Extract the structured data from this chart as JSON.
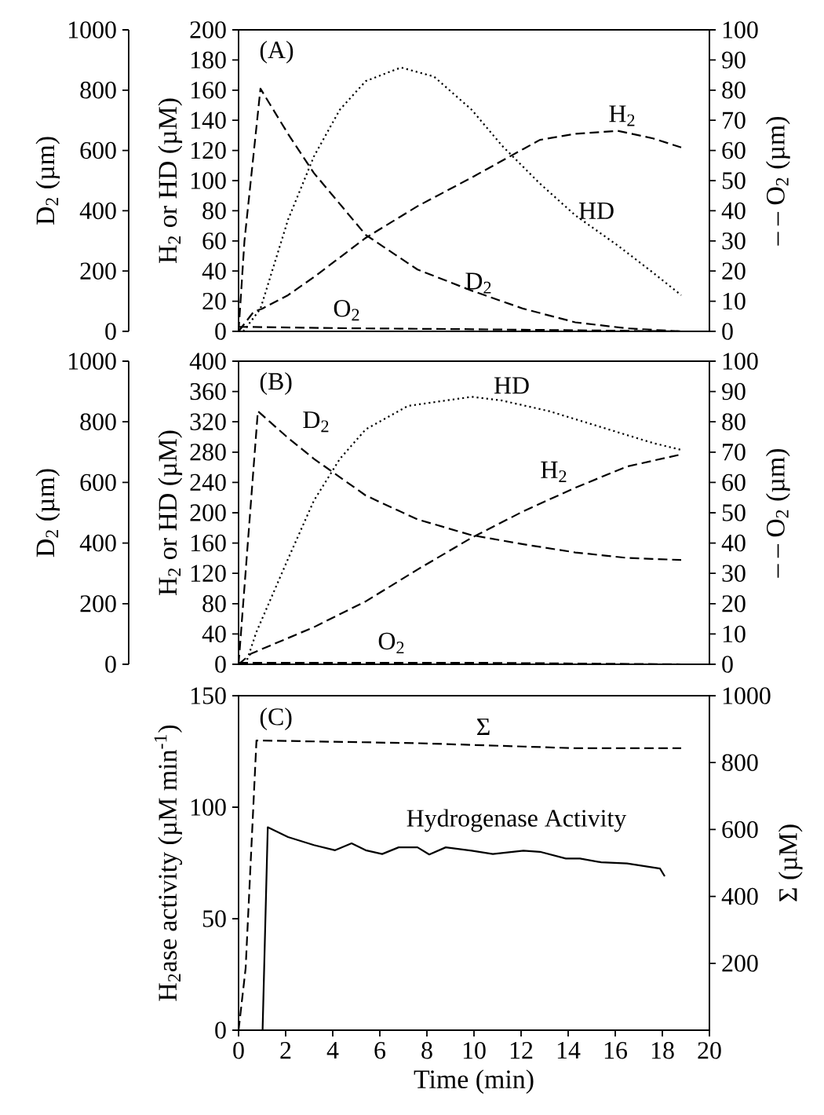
{
  "chart_data": [
    {
      "type": "line",
      "ylabel": "H$_{2}$ or HD (µM)",
      "y2label": "– – O$_{2}$ (µm)",
      "y3label": "D$_{2}$ (µm)",
      "xlim": [
        0,
        20
      ],
      "ylim": [
        0,
        200
      ],
      "yticks": [
        0,
        20,
        40,
        60,
        80,
        100,
        120,
        140,
        160,
        180,
        200
      ],
      "y2lim": [
        0,
        100
      ],
      "y2ticks": [
        0,
        10,
        20,
        30,
        40,
        50,
        60,
        70,
        80,
        90,
        100
      ],
      "y3lim": [
        0,
        1000
      ],
      "y3ticks": [
        0,
        200,
        400,
        600,
        800,
        1000
      ],
      "tick_labels": "y",
      "series": [
        {
          "name": "D$_{2}$",
          "color": "#000000",
          "line_style": "dashed",
          "axis": "y3",
          "x": [
            0,
            0.25,
            0.93,
            2.1,
            3.2,
            5.4,
            7.6,
            9.9,
            12.1,
            14.3,
            16.5,
            18.8
          ],
          "values": [
            0,
            300,
            805,
            655,
            525,
            320,
            205,
            135,
            75,
            30,
            10,
            0
          ]
        },
        {
          "name": "HD",
          "color": "#000000",
          "line_style": "dotted",
          "x": [
            0.2,
            0.93,
            2.1,
            3.2,
            4.3,
            5.4,
            6.9,
            8.3,
            9.9,
            11.2,
            12.8,
            14.3,
            16.1,
            17.6,
            18.8
          ],
          "values": [
            0,
            15,
            74,
            116,
            147,
            166,
            175,
            169,
            147,
            123,
            98,
            77,
            57,
            39,
            24
          ]
        },
        {
          "name": "H$_{2}$",
          "color": "#000000",
          "line_style": "dashed",
          "x": [
            0,
            0.64,
            1,
            2.1,
            3.2,
            5.4,
            7.6,
            9.9,
            12.1,
            12.8,
            14.3,
            16.1,
            17.6,
            18.8
          ],
          "values": [
            0,
            13,
            15,
            24,
            36,
            62,
            83,
            102,
            121,
            127,
            131,
            133,
            128,
            122
          ]
        },
        {
          "name": "O$_{2}$",
          "color": "#000000",
          "line_style": "dashed",
          "axis": "y2",
          "x": [
            0,
            5,
            10,
            15,
            18.8
          ],
          "values": [
            1.5,
            1,
            0.7,
            0.3,
            0
          ]
        }
      ],
      "annotations": [
        "(A)"
      ]
    },
    {
      "type": "line",
      "ylabel": "H$_{2}$ or HD (µM)",
      "y2label": "– – O$_{2}$ (µm)",
      "y3label": "D$_{2}$ (µm)",
      "xlim": [
        0,
        20
      ],
      "ylim": [
        0,
        400
      ],
      "yticks": [
        0,
        40,
        80,
        120,
        160,
        200,
        240,
        280,
        320,
        360,
        400
      ],
      "y2lim": [
        0,
        100
      ],
      "y2ticks": [
        0,
        10,
        20,
        30,
        40,
        50,
        60,
        70,
        80,
        90,
        100
      ],
      "y3lim": [
        0,
        1000
      ],
      "y3ticks": [
        0,
        200,
        400,
        600,
        800,
        1000
      ],
      "tick_labels": "y",
      "series": [
        {
          "name": "D$_{2}$",
          "color": "#000000",
          "line_style": "dashed",
          "axis": "y3",
          "x": [
            0,
            0.82,
            2.1,
            3.2,
            5.4,
            7.6,
            9.9,
            12.1,
            14.3,
            16.5,
            18.8
          ],
          "values": [
            0,
            835,
            747,
            678,
            557,
            478,
            426,
            396,
            369,
            351,
            344
          ]
        },
        {
          "name": "HD",
          "color": "#000000",
          "line_style": "dotted",
          "x": [
            0.3,
            0.75,
            2.1,
            3.2,
            4.3,
            5.4,
            7.2,
            9.9,
            11.2,
            13.2,
            15.4,
            17.6,
            18.8
          ],
          "values": [
            0,
            42,
            139,
            216,
            271,
            310,
            341,
            353,
            348,
            334,
            313,
            292,
            283
          ]
        },
        {
          "name": "H$_{2}$",
          "color": "#000000",
          "line_style": "dashed",
          "x": [
            0,
            0.53,
            3.2,
            5.4,
            7.6,
            9.9,
            12.1,
            14.3,
            16.5,
            18.8
          ],
          "values": [
            0,
            14,
            49,
            83,
            125,
            167,
            202,
            233,
            261,
            277
          ]
        },
        {
          "name": "O$_{2}$",
          "color": "#000000",
          "line_style": "dashed",
          "axis": "y2",
          "x": [
            0,
            10,
            18.8
          ],
          "values": [
            0.5,
            0.5,
            0
          ]
        }
      ],
      "annotations": [
        "(B)"
      ]
    },
    {
      "type": "line",
      "xlabel": "Time  (min)",
      "ylabel": "H$_{2}$ase activity (µM min$^{-1}$)",
      "y2label": "Σ (µM)",
      "xlim": [
        0,
        20
      ],
      "xticks": [
        0,
        2,
        4,
        6,
        8,
        10,
        12,
        14,
        16,
        18,
        20
      ],
      "ylim": [
        0,
        150
      ],
      "yticks": [
        0,
        50,
        100,
        150
      ],
      "y2lim": [
        0,
        1000
      ],
      "y2ticks": [
        200,
        400,
        600,
        800,
        1000
      ],
      "series": [
        {
          "name": "Σ",
          "color": "#000000",
          "line_style": "dashed",
          "axis": "y2",
          "x": [
            0,
            0.3,
            0.76,
            0.98,
            7.6,
            12.1,
            14.3,
            18.8
          ],
          "values": [
            0,
            185,
            866,
            866,
            858,
            848,
            843,
            843
          ]
        },
        {
          "name": "Hydrogenase Activity",
          "color": "#000000",
          "line_style": "solid",
          "x": [
            1.02,
            1.24,
            2.1,
            3.2,
            4.1,
            4.8,
            5.4,
            6.1,
            6.8,
            7.6,
            8.1,
            8.8,
            9.9,
            10.8,
            12.1,
            12.8,
            13.9,
            14.5,
            15.4,
            16.5,
            17.9,
            18.1
          ],
          "values": [
            0,
            91,
            86.6,
            83,
            80.7,
            83.8,
            80.7,
            79,
            82,
            82,
            78.8,
            82,
            80.5,
            79,
            80.5,
            80,
            77,
            77,
            75.3,
            74.8,
            72.5,
            69
          ]
        }
      ],
      "annotations": [
        "(C)"
      ]
    }
  ]
}
